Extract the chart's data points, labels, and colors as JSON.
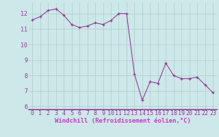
{
  "x": [
    0,
    1,
    2,
    3,
    4,
    5,
    6,
    7,
    8,
    9,
    10,
    11,
    12,
    13,
    14,
    15,
    16,
    17,
    18,
    19,
    20,
    21,
    22,
    23
  ],
  "y": [
    11.6,
    11.8,
    12.2,
    12.3,
    11.9,
    11.3,
    11.1,
    11.2,
    11.4,
    11.3,
    11.55,
    12.0,
    12.0,
    8.1,
    6.4,
    7.6,
    7.5,
    8.8,
    8.0,
    7.8,
    7.8,
    7.9,
    7.4,
    6.9
  ],
  "line_color": "#993399",
  "marker": "+",
  "marker_size": 3,
  "marker_color": "#993399",
  "bg_color": "#cce8e8",
  "grid_color": "#aacccc",
  "xlabel": "Windchill (Refroidissement éolien,°C)",
  "xlabel_color": "#cc33cc",
  "xlabel_bg": "#cce8e8",
  "ylabel_ticks": [
    6,
    7,
    8,
    9,
    10,
    11,
    12
  ],
  "xlim": [
    -0.5,
    23.5
  ],
  "ylim": [
    5.8,
    12.7
  ],
  "tick_label_color": "#993399",
  "axis_label_fontsize": 6.5,
  "tick_fontsize": 6.0,
  "separator_color": "#993399",
  "fig_width": 3.2,
  "fig_height": 2.0,
  "dpi": 100
}
